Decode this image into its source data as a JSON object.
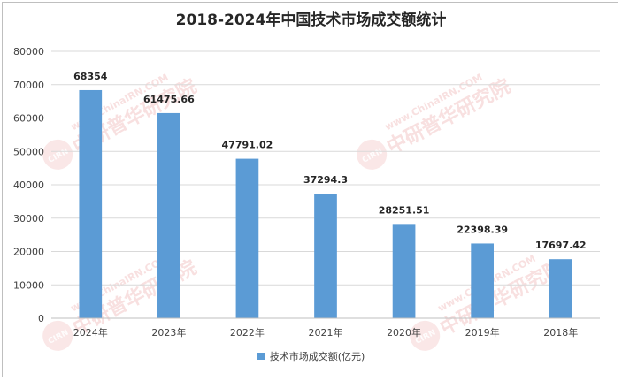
{
  "chart_data": {
    "type": "bar",
    "title": "2018-2024年中国技术市场成交额统计",
    "categories": [
      "2024年",
      "2023年",
      "2022年",
      "2021年",
      "2020年",
      "2019年",
      "2018年"
    ],
    "series": [
      {
        "name": "技术市场成交额(亿元)",
        "values": [
          68354,
          61475.66,
          47791.02,
          37294.3,
          28251.51,
          22398.39,
          17697.42
        ],
        "labels": [
          "68354",
          "61475.66",
          "47791.02",
          "37294.3",
          "28251.51",
          "22398.39",
          "17697.42"
        ],
        "color": "#5b9bd5"
      }
    ],
    "ylim": [
      0,
      80000
    ],
    "yticks": [
      "0",
      "10000",
      "20000",
      "30000",
      "40000",
      "50000",
      "60000",
      "70000",
      "80000"
    ],
    "grid": true,
    "legend": "bottom"
  },
  "watermark": {
    "url": "www.ChinaIRN.COM",
    "name": "中研普华研究院",
    "logo": "CIRN"
  }
}
